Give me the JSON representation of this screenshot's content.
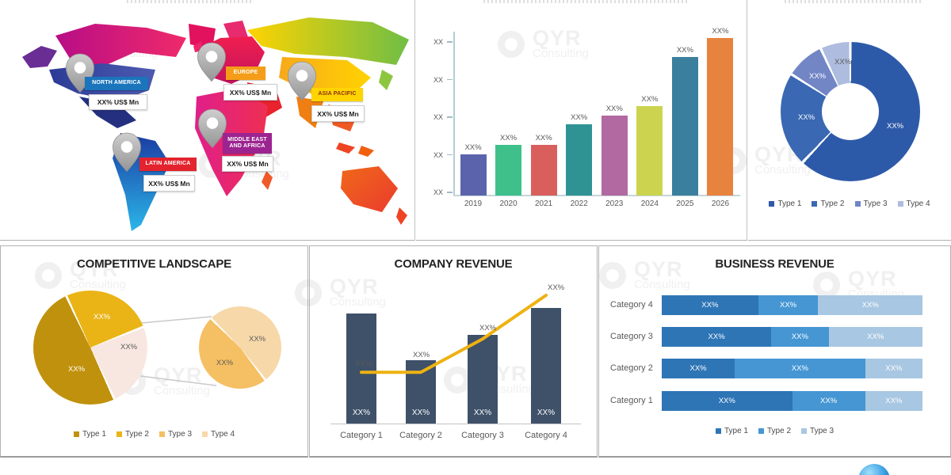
{
  "watermark": {
    "brand": "QYR",
    "sub": "Consulting"
  },
  "map_panel": {
    "regions": [
      {
        "name": "NORTH AMERICA",
        "value": "XX% US$ Mn",
        "badge_color": "#1b75bc",
        "text_color": "#ffffff"
      },
      {
        "name": "EUROPE",
        "value": "XX% US$ Mn",
        "badge_color": "#f59d18",
        "text_color": "#ffffff"
      },
      {
        "name": "ASIA PACIFIC",
        "value": "XX% US$ Mn",
        "badge_color": "#ffd400",
        "text_color": "#8a2c12"
      },
      {
        "name": "MIDDLE EAST AND AFRICA",
        "value": "XX% US$ Mn",
        "badge_color": "#9c2490",
        "text_color": "#ffffff"
      },
      {
        "name": "LATIN AMERICA",
        "value": "XX% US$ Mn",
        "badge_color": "#e3232e",
        "text_color": "#ffffff"
      }
    ]
  },
  "chart_data": [
    {
      "id": "market-size-by-year",
      "type": "bar",
      "categories": [
        "2019",
        "2020",
        "2021",
        "2022",
        "2023",
        "2024",
        "2025",
        "2026"
      ],
      "bar_labels": [
        "XX%",
        "XX%",
        "XX%",
        "XX%",
        "XX%",
        "XX%",
        "XX%",
        "XX%"
      ],
      "values_relative_pct": [
        26,
        32,
        32,
        45,
        51,
        57,
        88,
        100
      ],
      "y_tick_labels": [
        "XX",
        "XX",
        "XX",
        "XX",
        "XX"
      ],
      "colors": [
        "#5c63ad",
        "#3fc08b",
        "#d95f5c",
        "#2f9394",
        "#b269a1",
        "#ccd44f",
        "#3b7f9e",
        "#e8833f"
      ],
      "grid": false
    },
    {
      "id": "share-by-type-donut",
      "type": "pie",
      "donut": true,
      "slices": [
        {
          "legend": "Type 1",
          "label": "XX%",
          "pct": 62,
          "color": "#2d5aa8"
        },
        {
          "legend": "Type 2",
          "label": "XX%",
          "pct": 22,
          "color": "#3a68b2"
        },
        {
          "legend": "Type 3",
          "label": "XX%",
          "pct": 9,
          "color": "#7286c6"
        },
        {
          "legend": "Type 4",
          "label": "XX%",
          "pct": 7,
          "color": "#aebcdf"
        }
      ],
      "legend_position": "bottom"
    },
    {
      "id": "competitive-landscape",
      "type": "pie",
      "variant": "pie-of-pie",
      "title": "COMPETITIVE LANDSCAPE",
      "main_slices": [
        {
          "label": "XX%",
          "pct": 50,
          "color": "#c0910c"
        },
        {
          "label": "XX%",
          "pct": 26,
          "color": "#eab417"
        },
        {
          "label": "XX%",
          "pct": 24,
          "color": "#f8e7e0"
        }
      ],
      "secondary_slices": [
        {
          "label": "XX%",
          "pct": 52,
          "color": "#f7d8a9"
        },
        {
          "label": "XX%",
          "pct": 48,
          "color": "#f5bf63"
        }
      ],
      "legend": [
        {
          "label": "Type 1",
          "color": "#c0910c"
        },
        {
          "label": "Type 2",
          "color": "#eab417"
        },
        {
          "label": "Type 3",
          "color": "#f5bf63"
        },
        {
          "label": "Type 4",
          "color": "#f7d8a9"
        }
      ]
    },
    {
      "id": "company-revenue",
      "type": "bar",
      "variant": "bar-line-combo",
      "title": "COMPANY REVENUE",
      "categories": [
        "Category 1",
        "Category 2",
        "Category 3",
        "Category 4"
      ],
      "bar_values_relative_pct": [
        95,
        55,
        77,
        100
      ],
      "bar_labels": [
        "XX%",
        "XX%",
        "XX%",
        "XX%"
      ],
      "bar_color": "#3e5169",
      "line_values_relative_pct": [
        40,
        40,
        66,
        100
      ],
      "line_labels": [
        "XX%",
        "XX%",
        "XX%",
        "XX%"
      ],
      "line_color": "#eeb211"
    },
    {
      "id": "business-revenue",
      "type": "bar",
      "variant": "horizontal-stacked",
      "title": "BUSINESS REVENUE",
      "categories": [
        "Category 4",
        "Category 3",
        "Category 2",
        "Category 1"
      ],
      "series": [
        {
          "name": "Type 1",
          "color": "#2e75b6",
          "values_pct": [
            37,
            42,
            28,
            50
          ]
        },
        {
          "name": "Type 2",
          "color": "#4596d3",
          "values_pct": [
            23,
            22,
            50,
            28
          ]
        },
        {
          "name": "Type 3",
          "color": "#a8c7e2",
          "values_pct": [
            40,
            36,
            22,
            22
          ]
        }
      ],
      "segment_label": "XX%"
    }
  ]
}
